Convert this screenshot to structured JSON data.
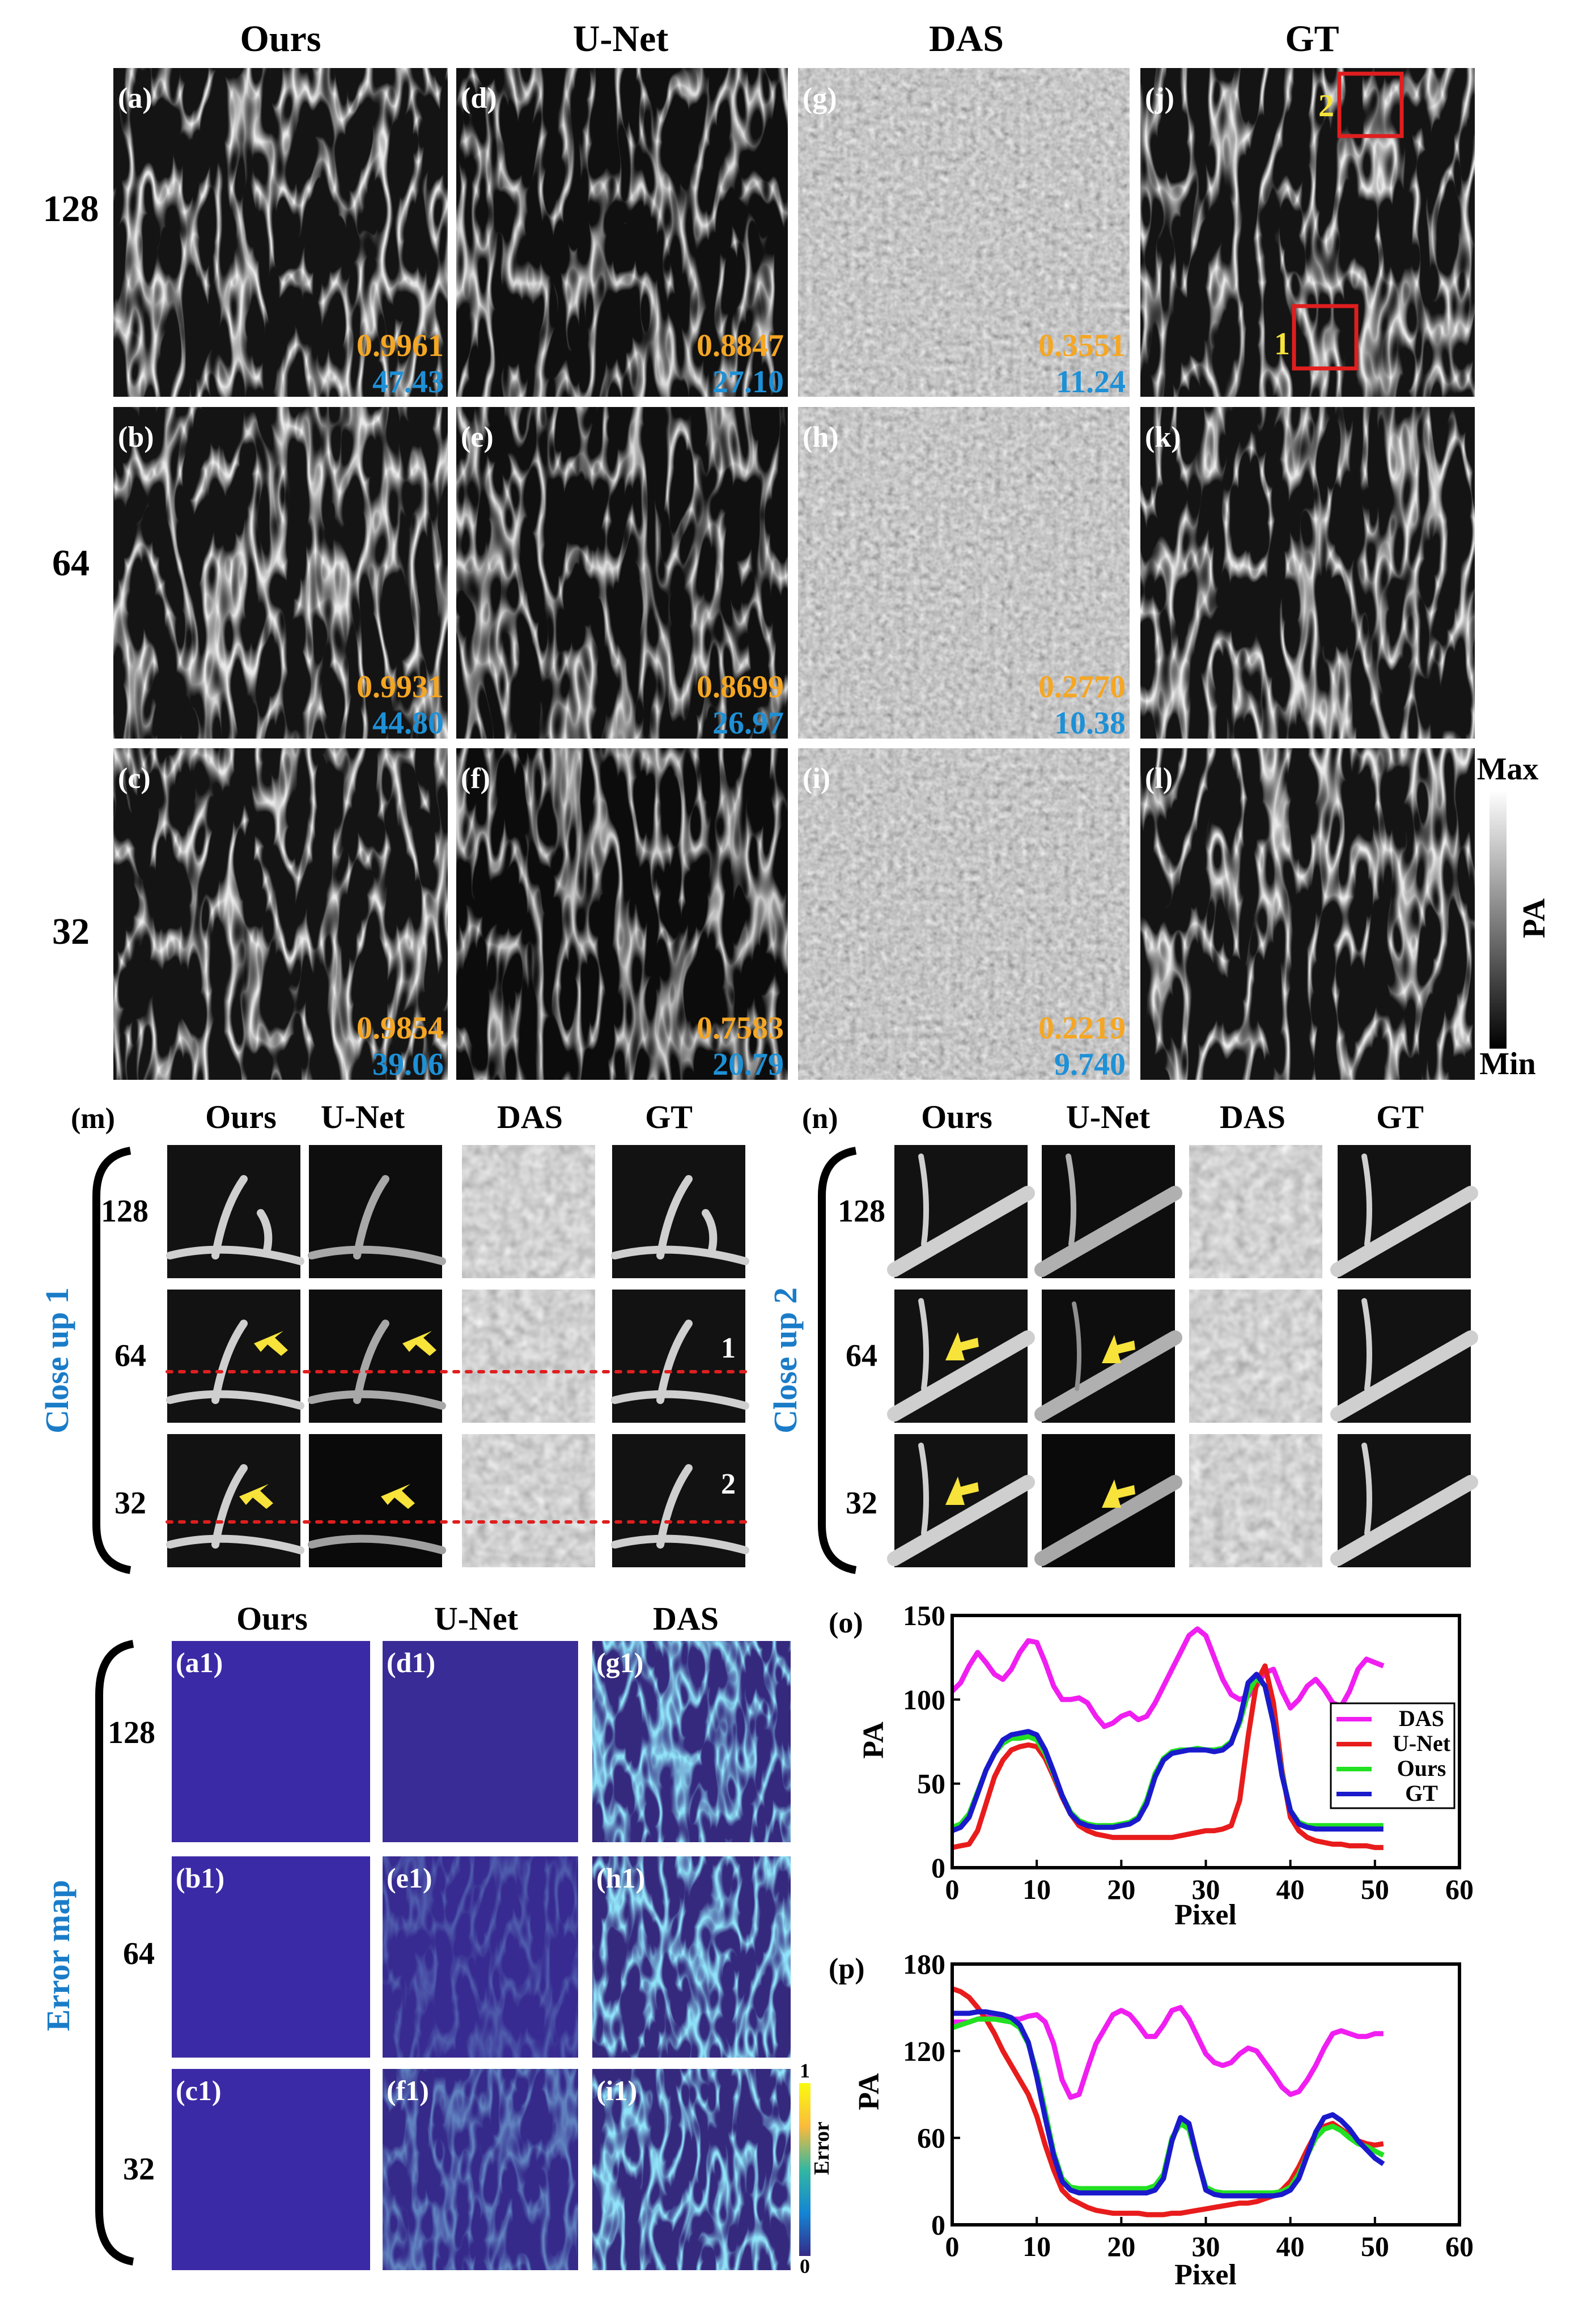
{
  "top_grid": {
    "column_headers": [
      "Ours",
      "U-Net",
      "DAS",
      "GT"
    ],
    "row_labels": [
      "128",
      "64",
      "32"
    ],
    "panel_labels": [
      [
        "(a)",
        "(d)",
        "(g)",
        "(j)"
      ],
      [
        "(b)",
        "(e)",
        "(h)",
        "(k)"
      ],
      [
        "(c)",
        "(f)",
        "(i)",
        "(l)"
      ]
    ],
    "metrics": [
      [
        {
          "ssim": "0.9961",
          "psnr": "47.43"
        },
        {
          "ssim": "0.8847",
          "psnr": "27.10"
        },
        {
          "ssim": "0.3551",
          "psnr": "11.24"
        }
      ],
      [
        {
          "ssim": "0.9931",
          "psnr": "44.80"
        },
        {
          "ssim": "0.8699",
          "psnr": "26.97"
        },
        {
          "ssim": "0.2770",
          "psnr": "10.38"
        }
      ],
      [
        {
          "ssim": "0.9854",
          "psnr": "39.06"
        },
        {
          "ssim": "0.7583",
          "psnr": "20.79"
        },
        {
          "ssim": "0.2219",
          "psnr": "9.740"
        }
      ]
    ],
    "roi_labels": [
      "1",
      "2"
    ],
    "colorbar": {
      "max_label": "Max",
      "min_label": "Min",
      "axis_label": "PA"
    }
  },
  "closeups": {
    "m": {
      "panel_label": "(m)",
      "side_title": "Close up 1",
      "column_headers": [
        "Ours",
        "U-Net",
        "DAS",
        "GT"
      ],
      "row_labels": [
        "128",
        "64",
        "32"
      ],
      "line_labels": [
        "1",
        "2"
      ]
    },
    "n": {
      "panel_label": "(n)",
      "side_title": "Close up 2",
      "column_headers": [
        "Ours",
        "U-Net",
        "DAS",
        "GT"
      ],
      "row_labels": [
        "128",
        "64",
        "32"
      ]
    }
  },
  "error_map": {
    "side_title": "Error map",
    "column_headers": [
      "Ours",
      "U-Net",
      "DAS"
    ],
    "row_labels": [
      "128",
      "64",
      "32"
    ],
    "panel_labels": [
      [
        "(a1)",
        "(d1)",
        "(g1)"
      ],
      [
        "(b1)",
        "(e1)",
        "(h1)"
      ],
      [
        "(c1)",
        "(f1)",
        "(i1)"
      ]
    ],
    "colorbar": {
      "max_label": "1",
      "min_label": "0",
      "axis_label": "Error"
    }
  },
  "colors": {
    "ssim": "#f5a623",
    "psnr": "#1e90d6",
    "title_blue": "#1a7cc8",
    "roi": "#e01e1e",
    "arrow": "#f7e33a",
    "das": "#f01ef0",
    "unet": "#e81c1c",
    "ours": "#22e022",
    "gt": "#1a1acc"
  },
  "chart_data": [
    {
      "panel_label": "(o)",
      "type": "line",
      "xlabel": "Pixel",
      "ylabel": "PA",
      "xlim": [
        0,
        60
      ],
      "ylim": [
        0,
        150
      ],
      "xticks": [
        0,
        10,
        20,
        30,
        40,
        50,
        60
      ],
      "yticks": [
        0,
        50,
        100,
        150
      ],
      "legend_position": "right",
      "x": [
        0,
        1,
        2,
        3,
        4,
        5,
        6,
        7,
        8,
        9,
        10,
        11,
        12,
        13,
        14,
        15,
        16,
        17,
        18,
        19,
        20,
        21,
        22,
        23,
        24,
        25,
        26,
        27,
        28,
        29,
        30,
        31,
        32,
        33,
        34,
        35,
        36,
        37,
        38,
        39,
        40,
        41,
        42,
        43,
        44,
        45,
        46,
        47,
        48,
        49,
        50,
        51
      ],
      "series": [
        {
          "name": "DAS",
          "values": [
            105,
            110,
            120,
            128,
            122,
            115,
            112,
            118,
            128,
            135,
            134,
            122,
            108,
            100,
            100,
            101,
            98,
            90,
            84,
            86,
            90,
            92,
            88,
            90,
            98,
            108,
            118,
            128,
            138,
            142,
            138,
            125,
            112,
            103,
            100,
            102,
            108,
            116,
            118,
            105,
            95,
            100,
            108,
            112,
            106,
            98,
            96,
            105,
            118,
            124,
            122,
            120
          ]
        },
        {
          "name": "U-Net",
          "values": [
            12,
            13,
            14,
            22,
            38,
            54,
            64,
            70,
            72,
            73,
            72,
            65,
            54,
            42,
            32,
            25,
            22,
            20,
            19,
            18,
            18,
            18,
            18,
            18,
            18,
            18,
            18,
            19,
            20,
            21,
            22,
            22,
            23,
            25,
            40,
            78,
            110,
            120,
            98,
            58,
            30,
            22,
            18,
            16,
            15,
            14,
            14,
            13,
            13,
            13,
            12,
            12
          ]
        },
        {
          "name": "Ours",
          "values": [
            24,
            26,
            32,
            45,
            58,
            68,
            74,
            77,
            77,
            78,
            76,
            68,
            56,
            43,
            33,
            28,
            26,
            25,
            25,
            25,
            26,
            27,
            30,
            40,
            56,
            65,
            69,
            70,
            70,
            71,
            70,
            70,
            71,
            75,
            86,
            104,
            113,
            108,
            86,
            56,
            34,
            27,
            25,
            25,
            25,
            25,
            25,
            25,
            25,
            25,
            25,
            25
          ]
        },
        {
          "name": "GT",
          "values": [
            22,
            24,
            30,
            44,
            58,
            68,
            76,
            79,
            80,
            81,
            79,
            70,
            57,
            43,
            32,
            27,
            25,
            24,
            24,
            24,
            25,
            26,
            29,
            38,
            54,
            64,
            68,
            69,
            70,
            70,
            70,
            69,
            70,
            74,
            88,
            110,
            115,
            108,
            86,
            55,
            34,
            26,
            24,
            23,
            23,
            23,
            23,
            23,
            23,
            23,
            23,
            23
          ]
        }
      ]
    },
    {
      "panel_label": "(p)",
      "type": "line",
      "xlabel": "Pixel",
      "ylabel": "PA",
      "xlim": [
        0,
        60
      ],
      "ylim": [
        0,
        180
      ],
      "xticks": [
        0,
        10,
        20,
        30,
        40,
        50,
        60
      ],
      "yticks": [
        0,
        60,
        120,
        180
      ],
      "x": [
        0,
        1,
        2,
        3,
        4,
        5,
        6,
        7,
        8,
        9,
        10,
        11,
        12,
        13,
        14,
        15,
        16,
        17,
        18,
        19,
        20,
        21,
        22,
        23,
        24,
        25,
        26,
        27,
        28,
        29,
        30,
        31,
        32,
        33,
        34,
        35,
        36,
        37,
        38,
        39,
        40,
        41,
        42,
        43,
        44,
        45,
        46,
        47,
        48,
        49,
        50,
        51
      ],
      "series": [
        {
          "name": "DAS",
          "values": [
            140,
            140,
            140,
            142,
            143,
            144,
            143,
            142,
            142,
            144,
            145,
            140,
            125,
            100,
            88,
            90,
            108,
            125,
            135,
            145,
            148,
            145,
            138,
            130,
            130,
            138,
            148,
            150,
            142,
            130,
            118,
            112,
            110,
            112,
            118,
            122,
            120,
            112,
            104,
            95,
            90,
            92,
            100,
            110,
            122,
            132,
            134,
            132,
            130,
            130,
            132,
            132
          ]
        },
        {
          "name": "U-Net",
          "values": [
            163,
            161,
            157,
            150,
            142,
            132,
            120,
            110,
            100,
            90,
            75,
            55,
            38,
            24,
            18,
            15,
            12,
            10,
            9,
            8,
            8,
            8,
            8,
            7,
            7,
            7,
            8,
            8,
            9,
            10,
            11,
            12,
            13,
            14,
            15,
            15,
            16,
            18,
            20,
            24,
            30,
            40,
            52,
            63,
            68,
            70,
            66,
            62,
            58,
            56,
            55,
            56
          ]
        },
        {
          "name": "Ours",
          "values": [
            136,
            138,
            140,
            142,
            142,
            142,
            141,
            140,
            136,
            125,
            105,
            78,
            50,
            32,
            26,
            25,
            25,
            25,
            25,
            25,
            25,
            25,
            25,
            25,
            27,
            35,
            60,
            70,
            66,
            45,
            26,
            23,
            22,
            22,
            22,
            22,
            22,
            22,
            22,
            23,
            26,
            35,
            48,
            60,
            66,
            68,
            65,
            60,
            56,
            54,
            51,
            48
          ]
        },
        {
          "name": "GT",
          "values": [
            146,
            146,
            146,
            147,
            147,
            146,
            145,
            143,
            138,
            126,
            102,
            74,
            48,
            30,
            24,
            22,
            22,
            22,
            22,
            22,
            22,
            22,
            22,
            22,
            24,
            32,
            58,
            74,
            70,
            46,
            24,
            21,
            20,
            20,
            20,
            20,
            20,
            20,
            20,
            21,
            24,
            32,
            48,
            64,
            74,
            76,
            72,
            66,
            58,
            52,
            46,
            42
          ]
        }
      ]
    }
  ]
}
